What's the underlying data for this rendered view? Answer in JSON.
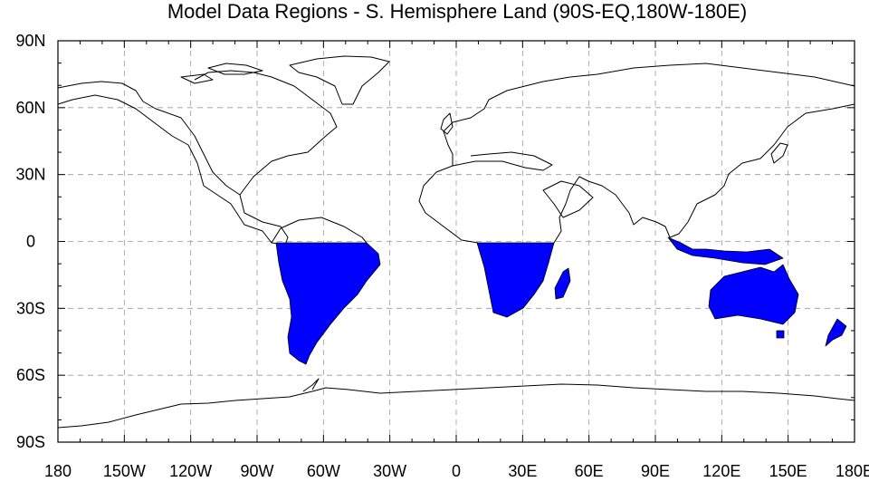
{
  "title": "Model Data Regions - S. Hemisphere Land (90S-EQ,180W-180E)",
  "colors": {
    "region_fill": "#0000ff",
    "coastline": "#000000",
    "grid": "#999999",
    "background": "#ffffff"
  },
  "map": {
    "projection": "cylindrical-equidistant",
    "lon_range": [
      -180,
      180
    ],
    "lat_range": [
      -90,
      90
    ],
    "highlighted_region": {
      "name": "S. Hemisphere Land",
      "lat": [
        -90,
        0
      ],
      "lon": [
        -180,
        180
      ]
    }
  },
  "axes": {
    "lat_ticks": [
      {
        "value": 90,
        "label": "90N"
      },
      {
        "value": 60,
        "label": "60N"
      },
      {
        "value": 30,
        "label": "30N"
      },
      {
        "value": 0,
        "label": "0"
      },
      {
        "value": -30,
        "label": "30S"
      },
      {
        "value": -60,
        "label": "60S"
      },
      {
        "value": -90,
        "label": "90S"
      }
    ],
    "lon_ticks": [
      {
        "value": -180,
        "label": "180"
      },
      {
        "value": -150,
        "label": "150W"
      },
      {
        "value": -120,
        "label": "120W"
      },
      {
        "value": -90,
        "label": "90W"
      },
      {
        "value": -60,
        "label": "60W"
      },
      {
        "value": -30,
        "label": "30W"
      },
      {
        "value": 0,
        "label": "0"
      },
      {
        "value": 30,
        "label": "30E"
      },
      {
        "value": 60,
        "label": "60E"
      },
      {
        "value": 90,
        "label": "90E"
      },
      {
        "value": 120,
        "label": "120E"
      },
      {
        "value": 150,
        "label": "150E"
      },
      {
        "value": 180,
        "label": "180E"
      }
    ]
  }
}
